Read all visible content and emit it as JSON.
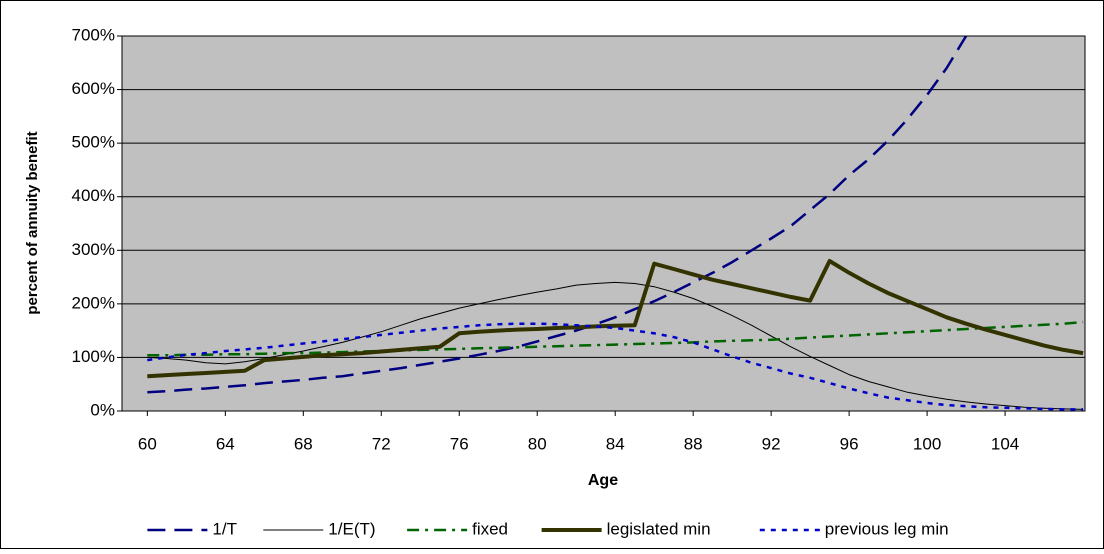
{
  "chart_data": {
    "type": "line",
    "x_label": "Age",
    "y_label": "percent of annuity benefit",
    "x": [
      60,
      61,
      62,
      63,
      64,
      65,
      66,
      67,
      68,
      69,
      70,
      71,
      72,
      73,
      74,
      75,
      76,
      77,
      78,
      79,
      80,
      81,
      82,
      83,
      84,
      85,
      86,
      87,
      88,
      89,
      90,
      91,
      92,
      93,
      94,
      95,
      96,
      97,
      98,
      99,
      100,
      101,
      102,
      103,
      104,
      105,
      106,
      107,
      108
    ],
    "xlim": [
      58.7,
      108.1
    ],
    "xticks": [
      60,
      64,
      68,
      72,
      76,
      80,
      84,
      88,
      92,
      96,
      100,
      104
    ],
    "ylim": [
      0,
      700
    ],
    "yticks": [
      {
        "value": 0,
        "label": "0%"
      },
      {
        "value": 100,
        "label": "100%"
      },
      {
        "value": 200,
        "label": "200%"
      },
      {
        "value": 300,
        "label": "300%"
      },
      {
        "value": 400,
        "label": "400%"
      },
      {
        "value": 500,
        "label": "500%"
      },
      {
        "value": 600,
        "label": "600%"
      },
      {
        "value": 700,
        "label": "700%"
      }
    ],
    "grid": true,
    "series": [
      {
        "name": "1/T",
        "color": "#000080",
        "values": [
          35,
          37,
          40,
          42,
          45,
          48,
          52,
          55,
          58,
          62,
          65,
          70,
          75,
          80,
          86,
          92,
          98,
          105,
          112,
          120,
          130,
          140,
          150,
          162,
          175,
          190,
          205,
          222,
          240,
          258,
          278,
          300,
          322,
          345,
          375,
          405,
          440,
          470,
          505,
          545,
          590,
          640,
          700,
          null,
          null,
          null,
          null,
          null,
          null
        ]
      },
      {
        "name": "1/E(T)",
        "color": "#000000",
        "values": [
          100,
          98,
          95,
          90,
          88,
          92,
          98,
          105,
          112,
          120,
          128,
          138,
          148,
          160,
          172,
          182,
          192,
          200,
          208,
          215,
          222,
          228,
          235,
          238,
          240,
          238,
          232,
          222,
          210,
          195,
          178,
          160,
          140,
          120,
          102,
          85,
          68,
          55,
          45,
          35,
          28,
          22,
          17,
          13,
          10,
          7,
          5,
          4,
          3
        ]
      },
      {
        "name": "fixed",
        "color": "#006400",
        "values": [
          104,
          104,
          105,
          105,
          106,
          106,
          107,
          108,
          108,
          109,
          110,
          111,
          112,
          113,
          114,
          115,
          116,
          117,
          118,
          119,
          120,
          121,
          122,
          123,
          124,
          125,
          126,
          127,
          128,
          130,
          131,
          132,
          133,
          135,
          137,
          139,
          141,
          143,
          145,
          147,
          149,
          151,
          153,
          155,
          157,
          159,
          161,
          163,
          166
        ]
      },
      {
        "name": "legislated min",
        "color": "#333300",
        "values": [
          65,
          67,
          69,
          71,
          73,
          75,
          95,
          98,
          101,
          104,
          106,
          108,
          111,
          114,
          117,
          120,
          145,
          148,
          150,
          152,
          153,
          155,
          156,
          158,
          159,
          160,
          275,
          265,
          255,
          245,
          237,
          229,
          221,
          213,
          206,
          280,
          258,
          238,
          220,
          205,
          190,
          175,
          163,
          152,
          142,
          132,
          122,
          114,
          108
        ]
      },
      {
        "name": "previous leg min",
        "color": "#0000cc",
        "values": [
          95,
          100,
          105,
          108,
          112,
          115,
          118,
          122,
          126,
          130,
          134,
          138,
          142,
          146,
          150,
          154,
          157,
          160,
          162,
          163,
          163,
          162,
          160,
          158,
          155,
          150,
          145,
          138,
          128,
          115,
          102,
          90,
          80,
          70,
          62,
          52,
          42,
          33,
          25,
          20,
          15,
          11,
          9,
          7,
          6,
          5,
          4,
          3,
          3
        ]
      }
    ]
  }
}
